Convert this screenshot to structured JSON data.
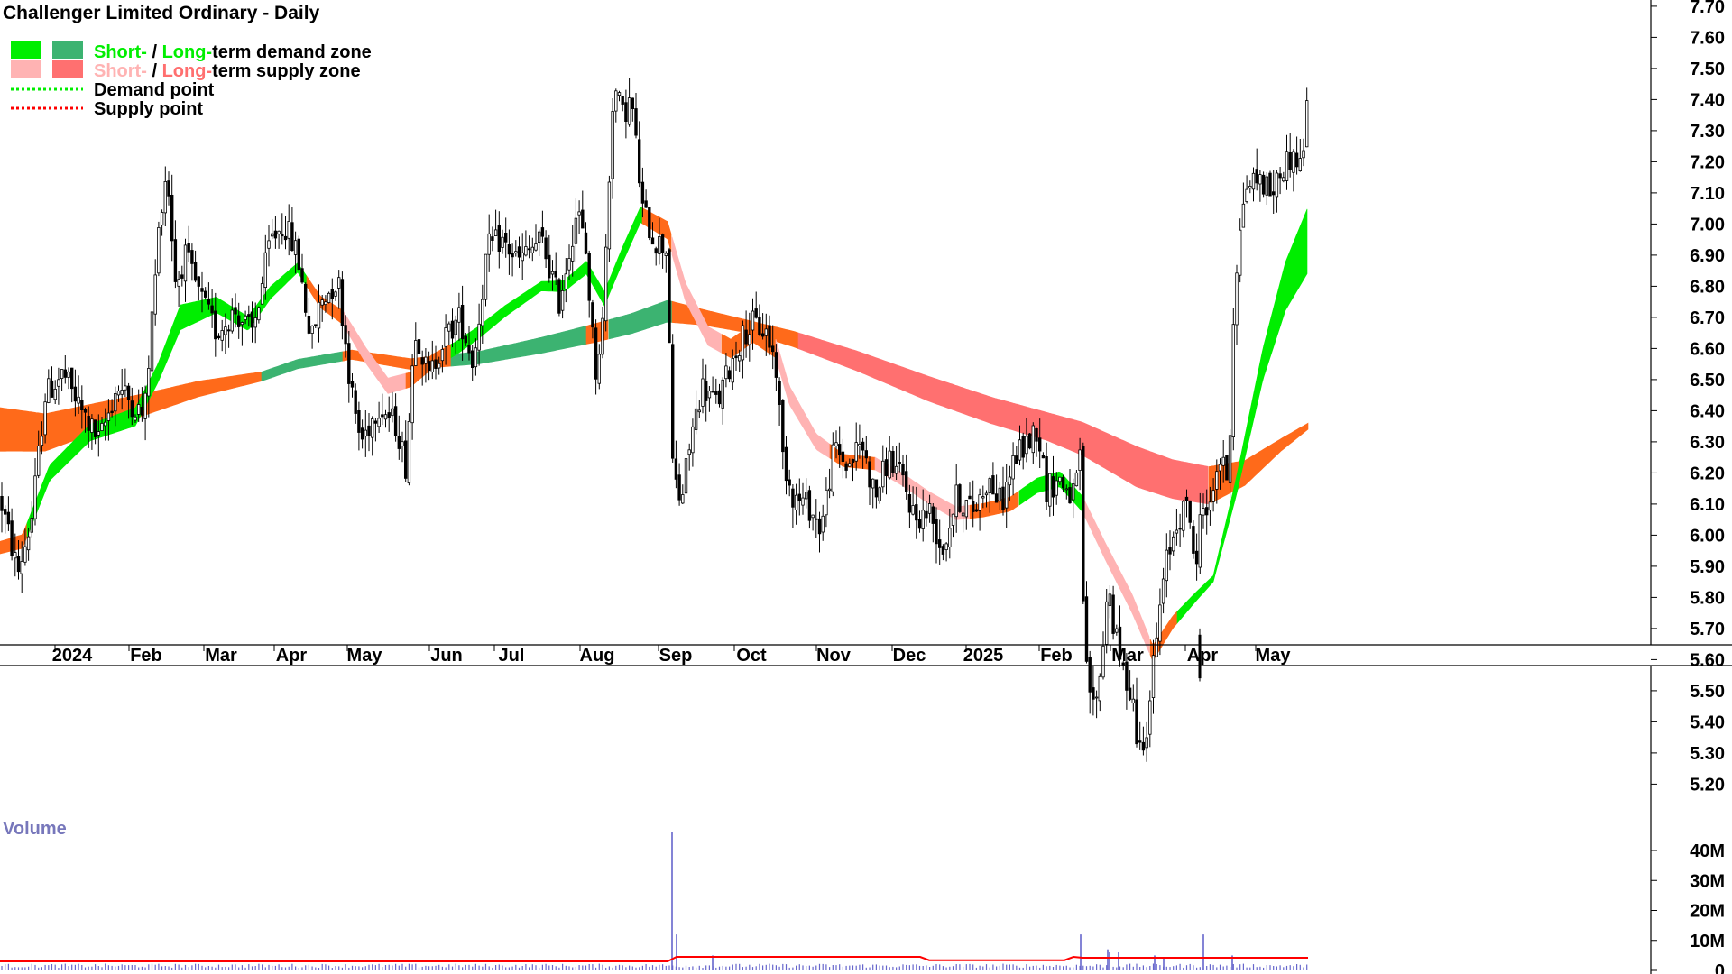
{
  "chart_data": {
    "type": "candlestick",
    "title": "Challenger Limited Ordinary - Daily",
    "legend": [
      {
        "label_parts": [
          "Short-",
          " / ",
          "Long-",
          "term demand zone"
        ],
        "part_colors": [
          "#00ee00",
          "#000000",
          "#00ee00",
          "#000000"
        ],
        "swatches": [
          "#00ee00",
          "#3cb371"
        ],
        "kind": "box"
      },
      {
        "label_parts": [
          "Short-",
          " / ",
          "Long-",
          "term supply zone"
        ],
        "part_colors": [
          "#ffb3b3",
          "#000000",
          "#ff6f6f",
          "#000000"
        ],
        "swatches": [
          "#ffb3b3",
          "#ff7070"
        ],
        "kind": "box"
      },
      {
        "label_parts": [
          "Demand point"
        ],
        "part_colors": [
          "#000000"
        ],
        "swatches": [
          "#00ee00"
        ],
        "kind": "dots"
      },
      {
        "label_parts": [
          "Supply point"
        ],
        "part_colors": [
          "#000000"
        ],
        "swatches": [
          "#ff0000"
        ],
        "kind": "dots"
      }
    ],
    "legend_placement": "top-left",
    "y_axis": {
      "side": "right",
      "ticks": [
        "7.70",
        "7.60",
        "7.50",
        "7.40",
        "7.30",
        "7.20",
        "7.10",
        "7.00",
        "6.90",
        "6.80",
        "6.70",
        "6.60",
        "6.50",
        "6.40",
        "6.30",
        "6.20",
        "6.10",
        "6.00",
        "5.90",
        "5.80",
        "5.70",
        "5.60",
        "5.50",
        "5.40",
        "5.30",
        "5.20"
      ],
      "range": [
        5.17,
        7.72
      ]
    },
    "x_axis": {
      "labels": [
        "2024",
        "Feb",
        "Mar",
        "Apr",
        "May",
        "Jun",
        "Jul",
        "Aug",
        "Sep",
        "Oct",
        "Nov",
        "Dec",
        "2025",
        "Feb",
        "Mar",
        "Apr",
        "May"
      ],
      "range_months": [
        "2023-12",
        "2025-05"
      ]
    },
    "price_path": [
      [
        0,
        6.12
      ],
      [
        10,
        6.0
      ],
      [
        20,
        5.88
      ],
      [
        35,
        6.05
      ],
      [
        50,
        6.45
      ],
      [
        70,
        6.52
      ],
      [
        90,
        6.4
      ],
      [
        110,
        6.3
      ],
      [
        130,
        6.48
      ],
      [
        160,
        6.38
      ],
      [
        178,
        7.05
      ],
      [
        185,
        7.18
      ],
      [
        195,
        6.8
      ],
      [
        205,
        6.9
      ],
      [
        220,
        6.78
      ],
      [
        240,
        6.65
      ],
      [
        260,
        6.72
      ],
      [
        280,
        6.65
      ],
      [
        300,
        6.95
      ],
      [
        315,
        7.0
      ],
      [
        330,
        6.9
      ],
      [
        345,
        6.62
      ],
      [
        355,
        6.75
      ],
      [
        375,
        6.82
      ],
      [
        390,
        6.45
      ],
      [
        400,
        6.3
      ],
      [
        420,
        6.42
      ],
      [
        440,
        6.35
      ],
      [
        450,
        6.22
      ],
      [
        460,
        6.68
      ],
      [
        475,
        6.5
      ],
      [
        490,
        6.62
      ],
      [
        510,
        6.7
      ],
      [
        525,
        6.55
      ],
      [
        540,
        6.92
      ],
      [
        555,
        6.95
      ],
      [
        575,
        6.88
      ],
      [
        600,
        6.95
      ],
      [
        620,
        6.75
      ],
      [
        640,
        7.05
      ],
      [
        650,
        6.9
      ],
      [
        660,
        6.52
      ],
      [
        668,
        6.68
      ],
      [
        680,
        7.45
      ],
      [
        690,
        7.35
      ],
      [
        700,
        7.4
      ],
      [
        712,
        7.05
      ],
      [
        725,
        6.95
      ],
      [
        740,
        6.92
      ],
      [
        745,
        6.22
      ],
      [
        755,
        6.1
      ],
      [
        765,
        6.3
      ],
      [
        778,
        6.48
      ],
      [
        795,
        6.42
      ],
      [
        810,
        6.55
      ],
      [
        825,
        6.65
      ],
      [
        835,
        6.68
      ],
      [
        850,
        6.65
      ],
      [
        860,
        6.55
      ],
      [
        868,
        6.25
      ],
      [
        880,
        6.12
      ],
      [
        895,
        6.1
      ],
      [
        910,
        6.02
      ],
      [
        925,
        6.28
      ],
      [
        940,
        6.22
      ],
      [
        955,
        6.3
      ],
      [
        970,
        6.12
      ],
      [
        985,
        6.25
      ],
      [
        1000,
        6.18
      ],
      [
        1015,
        6.05
      ],
      [
        1030,
        6.08
      ],
      [
        1045,
        5.95
      ],
      [
        1060,
        6.12
      ],
      [
        1080,
        6.08
      ],
      [
        1095,
        6.18
      ],
      [
        1110,
        6.1
      ],
      [
        1125,
        6.25
      ],
      [
        1140,
        6.3
      ],
      [
        1150,
        6.35
      ],
      [
        1160,
        6.15
      ],
      [
        1175,
        6.18
      ],
      [
        1190,
        6.12
      ],
      [
        1198,
        6.25
      ],
      [
        1202,
        5.6
      ],
      [
        1212,
        5.45
      ],
      [
        1220,
        5.55
      ],
      [
        1228,
        5.85
      ],
      [
        1235,
        5.7
      ],
      [
        1245,
        5.55
      ],
      [
        1255,
        5.5
      ],
      [
        1262,
        5.3
      ],
      [
        1272,
        5.4
      ],
      [
        1280,
        5.62
      ],
      [
        1292,
        5.9
      ],
      [
        1305,
        6.05
      ],
      [
        1318,
        6.1
      ],
      [
        1326,
        5.85
      ],
      [
        1332,
        6.15
      ],
      [
        1340,
        6.05
      ],
      [
        1350,
        6.25
      ],
      [
        1362,
        6.18
      ],
      [
        1368,
        6.78
      ],
      [
        1380,
        7.12
      ],
      [
        1395,
        7.15
      ],
      [
        1410,
        7.1
      ],
      [
        1425,
        7.2
      ],
      [
        1435,
        7.22
      ],
      [
        1443,
        7.18
      ],
      [
        1450,
        7.45
      ]
    ],
    "short_mid": [
      [
        0,
        5.96
      ],
      [
        25,
        5.98
      ],
      [
        55,
        6.2
      ],
      [
        100,
        6.33
      ],
      [
        150,
        6.38
      ],
      [
        175,
        6.52
      ],
      [
        200,
        6.7
      ],
      [
        240,
        6.74
      ],
      [
        275,
        6.68
      ],
      [
        300,
        6.78
      ],
      [
        330,
        6.86
      ],
      [
        355,
        6.75
      ],
      [
        380,
        6.7
      ],
      [
        405,
        6.58
      ],
      [
        430,
        6.48
      ],
      [
        455,
        6.5
      ],
      [
        480,
        6.56
      ],
      [
        505,
        6.6
      ],
      [
        530,
        6.65
      ],
      [
        560,
        6.72
      ],
      [
        600,
        6.8
      ],
      [
        625,
        6.8
      ],
      [
        650,
        6.86
      ],
      [
        670,
        6.76
      ],
      [
        690,
        6.9
      ],
      [
        710,
        7.03
      ],
      [
        740,
        6.98
      ],
      [
        760,
        6.78
      ],
      [
        785,
        6.64
      ],
      [
        810,
        6.6
      ],
      [
        835,
        6.65
      ],
      [
        860,
        6.6
      ],
      [
        875,
        6.45
      ],
      [
        905,
        6.3
      ],
      [
        935,
        6.24
      ],
      [
        970,
        6.23
      ],
      [
        1000,
        6.18
      ],
      [
        1030,
        6.12
      ],
      [
        1060,
        6.07
      ],
      [
        1090,
        6.08
      ],
      [
        1120,
        6.1
      ],
      [
        1150,
        6.16
      ],
      [
        1175,
        6.18
      ],
      [
        1200,
        6.1
      ],
      [
        1225,
        5.95
      ],
      [
        1255,
        5.78
      ],
      [
        1278,
        5.62
      ],
      [
        1300,
        5.72
      ],
      [
        1325,
        5.8
      ],
      [
        1345,
        5.86
      ],
      [
        1370,
        6.15
      ],
      [
        1400,
        6.55
      ],
      [
        1425,
        6.8
      ],
      [
        1450,
        6.95
      ]
    ],
    "short_width": [
      [
        0,
        0.04
      ],
      [
        60,
        0.05
      ],
      [
        175,
        0.06
      ],
      [
        200,
        0.08
      ],
      [
        240,
        0.05
      ],
      [
        300,
        0.04
      ],
      [
        330,
        0.03
      ],
      [
        400,
        0.05
      ],
      [
        430,
        0.05
      ],
      [
        530,
        0.04
      ],
      [
        600,
        0.03
      ],
      [
        690,
        0.05
      ],
      [
        710,
        0.05
      ],
      [
        760,
        0.06
      ],
      [
        875,
        0.06
      ],
      [
        935,
        0.04
      ],
      [
        1030,
        0.04
      ],
      [
        1200,
        0.05
      ],
      [
        1255,
        0.06
      ],
      [
        1278,
        0.05
      ],
      [
        1345,
        0.02
      ],
      [
        1400,
        0.1
      ],
      [
        1450,
        0.21
      ]
    ],
    "long_mid": [
      [
        0,
        6.34
      ],
      [
        50,
        6.33
      ],
      [
        110,
        6.38
      ],
      [
        160,
        6.42
      ],
      [
        220,
        6.47
      ],
      [
        290,
        6.51
      ],
      [
        330,
        6.55
      ],
      [
        390,
        6.58
      ],
      [
        455,
        6.55
      ],
      [
        530,
        6.57
      ],
      [
        600,
        6.61
      ],
      [
        660,
        6.65
      ],
      [
        700,
        6.68
      ],
      [
        740,
        6.72
      ],
      [
        780,
        6.7
      ],
      [
        830,
        6.67
      ],
      [
        880,
        6.63
      ],
      [
        950,
        6.56
      ],
      [
        1030,
        6.47
      ],
      [
        1100,
        6.4
      ],
      [
        1160,
        6.35
      ],
      [
        1200,
        6.31
      ],
      [
        1260,
        6.22
      ],
      [
        1300,
        6.18
      ],
      [
        1340,
        6.16
      ],
      [
        1380,
        6.2
      ],
      [
        1420,
        6.29
      ],
      [
        1450,
        6.35
      ]
    ],
    "long_width": [
      [
        0,
        0.14
      ],
      [
        50,
        0.12
      ],
      [
        160,
        0.07
      ],
      [
        220,
        0.05
      ],
      [
        290,
        0.03
      ],
      [
        390,
        0.03
      ],
      [
        530,
        0.04
      ],
      [
        660,
        0.06
      ],
      [
        740,
        0.07
      ],
      [
        780,
        0.05
      ],
      [
        830,
        0.04
      ],
      [
        880,
        0.05
      ],
      [
        1030,
        0.08
      ],
      [
        1160,
        0.09
      ],
      [
        1260,
        0.13
      ],
      [
        1340,
        0.12
      ],
      [
        1420,
        0.04
      ],
      [
        1450,
        0.02
      ]
    ],
    "short_colors": [
      {
        "from": 0,
        "to": 30,
        "color": "#ff6a1a"
      },
      {
        "from": 30,
        "to": 340,
        "color": "#00ee00"
      },
      {
        "from": 340,
        "to": 380,
        "color": "#ff6a1a"
      },
      {
        "from": 380,
        "to": 450,
        "color": "#ffb3b3"
      },
      {
        "from": 450,
        "to": 500,
        "color": "#ff6a1a"
      },
      {
        "from": 500,
        "to": 712,
        "color": "#00ee00"
      },
      {
        "from": 712,
        "to": 745,
        "color": "#ff6a1a"
      },
      {
        "from": 745,
        "to": 800,
        "color": "#ffb3b3"
      },
      {
        "from": 800,
        "to": 860,
        "color": "#ff6a1a"
      },
      {
        "from": 860,
        "to": 920,
        "color": "#ffb3b3"
      },
      {
        "from": 920,
        "to": 970,
        "color": "#ff6a1a"
      },
      {
        "from": 970,
        "to": 1075,
        "color": "#ffb3b3"
      },
      {
        "from": 1075,
        "to": 1130,
        "color": "#ff6a1a"
      },
      {
        "from": 1130,
        "to": 1200,
        "color": "#00ee00"
      },
      {
        "from": 1200,
        "to": 1275,
        "color": "#ffb3b3"
      },
      {
        "from": 1275,
        "to": 1305,
        "color": "#ff6a1a"
      },
      {
        "from": 1305,
        "to": 1450,
        "color": "#00ee00"
      }
    ],
    "long_colors": [
      {
        "from": 0,
        "to": 290,
        "color": "#ff6a1a"
      },
      {
        "from": 290,
        "to": 380,
        "color": "#3cb371"
      },
      {
        "from": 380,
        "to": 500,
        "color": "#ff6a1a"
      },
      {
        "from": 500,
        "to": 650,
        "color": "#3cb371"
      },
      {
        "from": 650,
        "to": 675,
        "color": "#ff6a1a"
      },
      {
        "from": 675,
        "to": 745,
        "color": "#3cb371"
      },
      {
        "from": 745,
        "to": 885,
        "color": "#ff6a1a"
      },
      {
        "from": 885,
        "to": 1340,
        "color": "#ff7070"
      },
      {
        "from": 1340,
        "to": 1450,
        "color": "#ff6a1a"
      }
    ],
    "volume_axis": {
      "ticks": [
        "40M",
        "30M",
        "20M",
        "10M",
        "0"
      ],
      "range": [
        0,
        50
      ]
    },
    "volume": {
      "title": "Volume",
      "baseline_millions": 1.5,
      "spikes": [
        [
          745,
          46
        ],
        [
          750,
          12
        ],
        [
          790,
          5
        ],
        [
          1198,
          12
        ],
        [
          1228,
          7
        ],
        [
          1240,
          6
        ],
        [
          1280,
          5
        ],
        [
          1290,
          4
        ],
        [
          1334,
          12
        ],
        [
          1366,
          5
        ],
        [
          1230,
          6
        ]
      ]
    }
  },
  "colors": {
    "candle": "#000000",
    "volume_bar": "#6666cc",
    "volume_ma": "#ff0000",
    "volume_title": "#7777bb",
    "axis_line": "#000000"
  }
}
